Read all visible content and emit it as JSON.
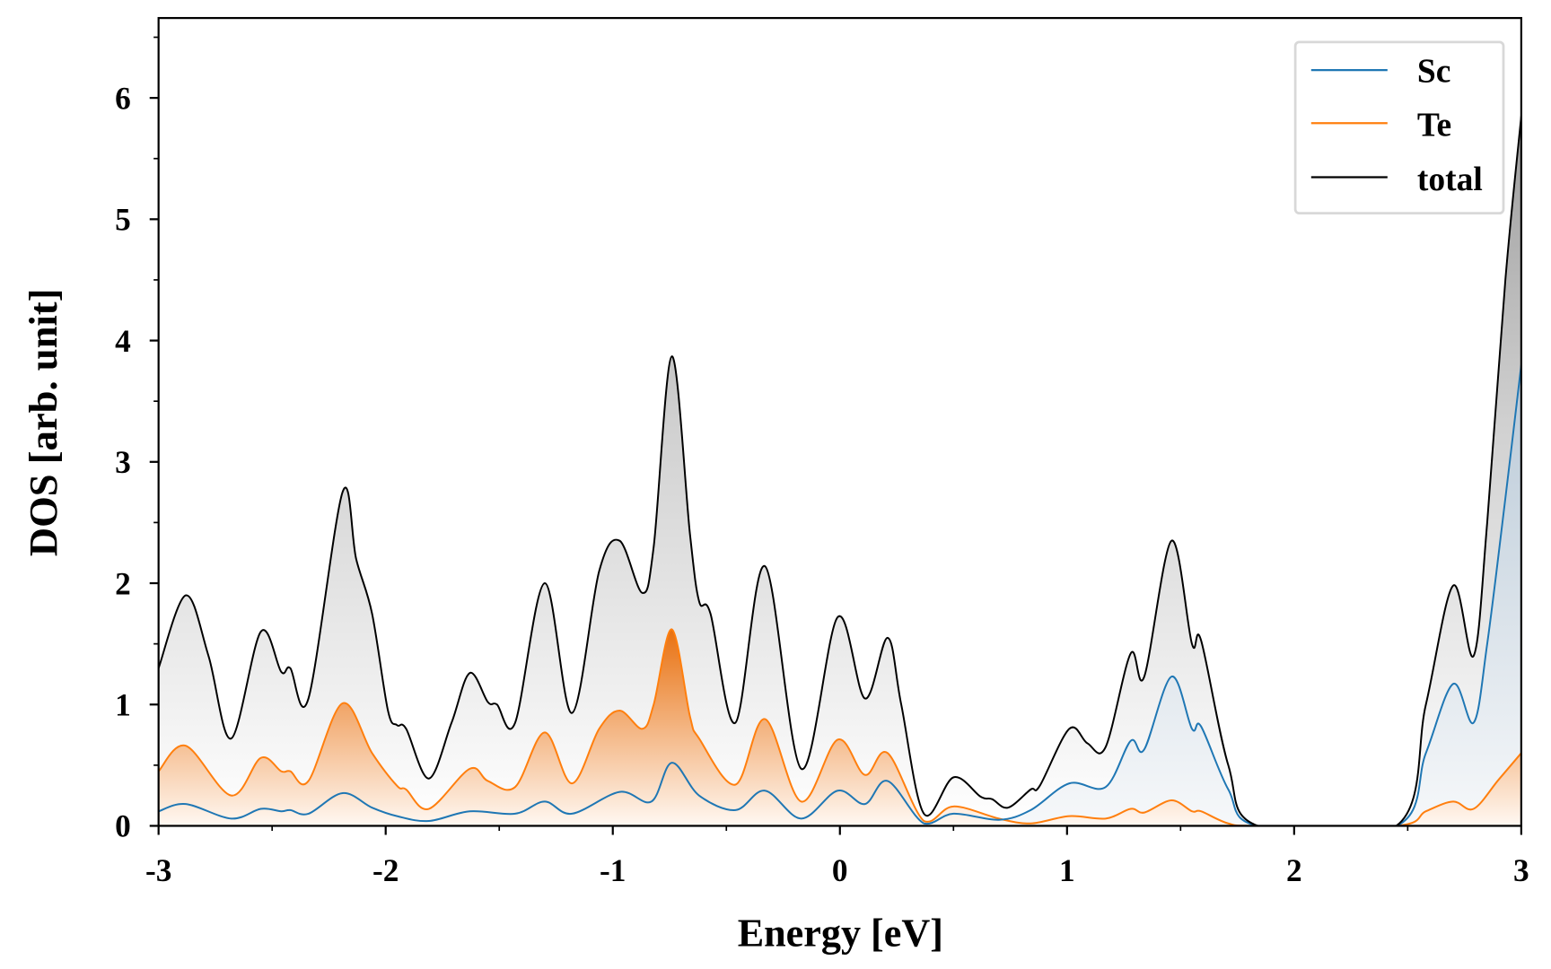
{
  "chart_data": {
    "type": "line",
    "title": "",
    "xlabel": "Energy [eV]",
    "ylabel": "DOS [arb. unit]",
    "xlim": [
      -3,
      3
    ],
    "ylim": [
      0,
      6.65
    ],
    "xticks": [
      "-3",
      "-2",
      "-1",
      "0",
      "1",
      "2",
      "3"
    ],
    "yticks": [
      "0",
      "1",
      "2",
      "3",
      "4",
      "5",
      "6"
    ],
    "grid": false,
    "legend": {
      "placement": "top-right",
      "entries": [
        "Sc",
        "Te",
        "total"
      ]
    },
    "series": [
      {
        "name": "Sc",
        "color": "#1f77b4",
        "x": [
          -3,
          -2.88,
          -2.68,
          -2.55,
          -2.46,
          -2.42,
          -2.34,
          -2.19,
          -2.06,
          -1.95,
          -1.81,
          -1.63,
          -1.43,
          -1.3,
          -1.18,
          -0.97,
          -0.83,
          -0.74,
          -0.62,
          -0.46,
          -0.33,
          -0.17,
          -0.01,
          0.11,
          0.21,
          0.37,
          0.5,
          0.7,
          0.84,
          1.01,
          1.17,
          1.28,
          1.34,
          1.46,
          1.55,
          1.59,
          1.71,
          1.84,
          2.45,
          2.58,
          2.7,
          2.79,
          2.85,
          2.93,
          3.0
        ],
        "y": [
          0.12,
          0.18,
          0.06,
          0.14,
          0.12,
          0.13,
          0.1,
          0.27,
          0.15,
          0.08,
          0.04,
          0.12,
          0.1,
          0.2,
          0.1,
          0.28,
          0.2,
          0.52,
          0.25,
          0.13,
          0.29,
          0.06,
          0.29,
          0.18,
          0.37,
          0.02,
          0.1,
          0.05,
          0.13,
          0.35,
          0.32,
          0.7,
          0.63,
          1.23,
          0.8,
          0.82,
          0.3,
          0.0,
          0.0,
          0.6,
          1.17,
          0.85,
          1.5,
          2.7,
          3.8
        ]
      },
      {
        "name": "Te",
        "color": "#ff7f0e",
        "x": [
          -3,
          -2.88,
          -2.68,
          -2.55,
          -2.46,
          -2.42,
          -2.34,
          -2.19,
          -2.06,
          -1.95,
          -1.91,
          -1.81,
          -1.63,
          -1.55,
          -1.43,
          -1.3,
          -1.18,
          -1.06,
          -0.97,
          -0.87,
          -0.82,
          -0.74,
          -0.66,
          -0.62,
          -0.46,
          -0.33,
          -0.17,
          -0.01,
          0.11,
          0.21,
          0.37,
          0.5,
          0.7,
          0.84,
          1.01,
          1.17,
          1.28,
          1.34,
          1.46,
          1.55,
          1.59,
          1.71,
          1.84,
          2.45,
          2.58,
          2.7,
          2.79,
          2.9,
          3.0
        ],
        "y": [
          0.45,
          0.66,
          0.25,
          0.56,
          0.45,
          0.45,
          0.37,
          1.01,
          0.6,
          0.33,
          0.3,
          0.14,
          0.47,
          0.37,
          0.32,
          0.77,
          0.35,
          0.8,
          0.95,
          0.8,
          1.0,
          1.62,
          0.9,
          0.72,
          0.34,
          0.88,
          0.2,
          0.71,
          0.42,
          0.6,
          0.04,
          0.16,
          0.06,
          0.02,
          0.08,
          0.06,
          0.14,
          0.11,
          0.21,
          0.12,
          0.12,
          0.02,
          0.0,
          0.0,
          0.12,
          0.2,
          0.14,
          0.38,
          0.6
        ]
      },
      {
        "name": "total",
        "color": "#000000",
        "x": [
          -3,
          -2.88,
          -2.78,
          -2.68,
          -2.55,
          -2.46,
          -2.42,
          -2.34,
          -2.19,
          -2.13,
          -2.06,
          -1.99,
          -1.95,
          -1.91,
          -1.81,
          -1.71,
          -1.63,
          -1.55,
          -1.51,
          -1.43,
          -1.3,
          -1.18,
          -1.06,
          -0.97,
          -0.87,
          -0.82,
          -0.74,
          -0.66,
          -0.62,
          -0.57,
          -0.46,
          -0.33,
          -0.17,
          -0.01,
          0.11,
          0.21,
          0.27,
          0.37,
          0.5,
          0.62,
          0.67,
          0.74,
          0.84,
          0.88,
          1.01,
          1.09,
          1.17,
          1.28,
          1.34,
          1.46,
          1.55,
          1.59,
          1.71,
          1.84,
          2.45,
          2.58,
          2.7,
          2.79,
          2.85,
          2.93,
          3.0
        ],
        "y": [
          1.3,
          1.9,
          1.4,
          0.72,
          1.6,
          1.27,
          1.3,
          1.05,
          2.75,
          2.2,
          1.75,
          0.95,
          0.83,
          0.8,
          0.39,
          0.85,
          1.26,
          1.02,
          1.0,
          0.85,
          2.0,
          0.93,
          2.1,
          2.35,
          1.92,
          2.3,
          3.87,
          2.4,
          1.85,
          1.75,
          0.85,
          2.14,
          0.47,
          1.72,
          1.05,
          1.55,
          1.0,
          0.1,
          0.4,
          0.24,
          0.22,
          0.15,
          0.3,
          0.33,
          0.8,
          0.68,
          0.65,
          1.42,
          1.23,
          2.35,
          1.5,
          1.53,
          0.5,
          0.0,
          0.0,
          1.0,
          1.98,
          1.4,
          2.5,
          4.5,
          5.85
        ]
      }
    ]
  }
}
